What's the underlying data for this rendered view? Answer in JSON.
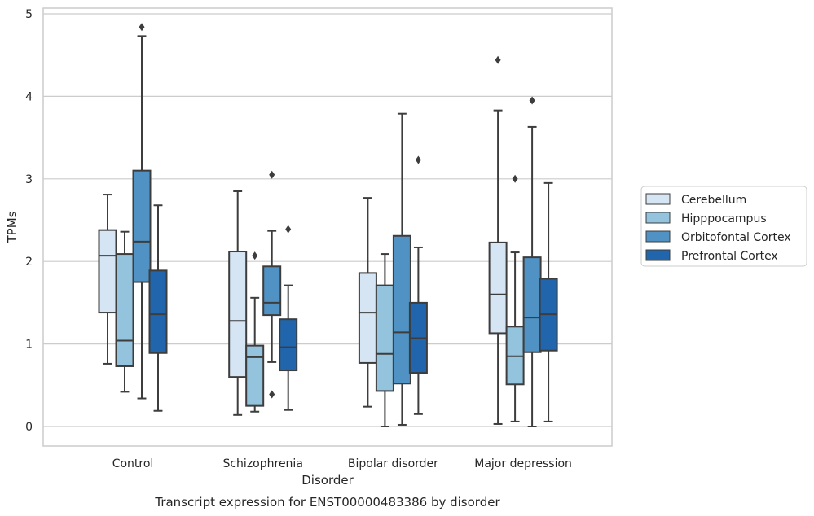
{
  "chart_data": {
    "type": "box",
    "title": "Transcript expression for ENST00000483386 by disorder",
    "xlabel": "Disorder",
    "ylabel": "TPMs",
    "ylim": [
      -0.23,
      5.1
    ],
    "yticks": [
      0,
      1,
      2,
      3,
      4,
      5
    ],
    "grid": true,
    "legend_position": "right",
    "categories": [
      "Control",
      "Schizophrenia",
      "Bipolar disorder",
      "Major depression"
    ],
    "series": [
      {
        "name": "Cerebellum",
        "color": "#d6e5f4",
        "boxes": [
          {
            "whislo": 0.76,
            "q1": 1.38,
            "med": 2.07,
            "q3": 2.38,
            "whishi": 2.81,
            "fliers": []
          },
          {
            "whislo": 0.14,
            "q1": 0.6,
            "med": 1.28,
            "q3": 2.12,
            "whishi": 2.85,
            "fliers": []
          },
          {
            "whislo": 0.24,
            "q1": 0.77,
            "med": 1.38,
            "q3": 1.86,
            "whishi": 2.77,
            "fliers": []
          },
          {
            "whislo": 0.03,
            "q1": 1.13,
            "med": 1.6,
            "q3": 2.23,
            "whishi": 3.83,
            "fliers": [
              4.44
            ]
          }
        ]
      },
      {
        "name": "Hipppocampus",
        "color": "#94c3dd",
        "boxes": [
          {
            "whislo": 0.42,
            "q1": 0.73,
            "med": 1.04,
            "q3": 2.09,
            "whishi": 2.36,
            "fliers": []
          },
          {
            "whislo": 0.18,
            "q1": 0.25,
            "med": 0.84,
            "q3": 0.98,
            "whishi": 1.56,
            "fliers": [
              2.07
            ]
          },
          {
            "whislo": 0.0,
            "q1": 0.43,
            "med": 0.88,
            "q3": 1.71,
            "whishi": 2.09,
            "fliers": []
          },
          {
            "whislo": 0.06,
            "q1": 0.51,
            "med": 0.85,
            "q3": 1.21,
            "whishi": 2.11,
            "fliers": [
              3.0
            ]
          }
        ]
      },
      {
        "name": "Orbitofontal Cortex",
        "color": "#4f92c3",
        "boxes": [
          {
            "whislo": 0.34,
            "q1": 1.75,
            "med": 2.24,
            "q3": 3.1,
            "whishi": 4.73,
            "fliers": [
              4.84
            ]
          },
          {
            "whislo": 0.78,
            "q1": 1.35,
            "med": 1.5,
            "q3": 1.94,
            "whishi": 2.37,
            "fliers": [
              3.05,
              0.39
            ]
          },
          {
            "whislo": 0.02,
            "q1": 0.52,
            "med": 1.14,
            "q3": 2.31,
            "whishi": 3.79,
            "fliers": []
          },
          {
            "whislo": 0.0,
            "q1": 0.9,
            "med": 1.32,
            "q3": 2.05,
            "whishi": 3.63,
            "fliers": [
              3.95
            ]
          }
        ]
      },
      {
        "name": "Prefrontal Cortex",
        "color": "#2166ac",
        "boxes": [
          {
            "whislo": 0.19,
            "q1": 0.89,
            "med": 1.36,
            "q3": 1.89,
            "whishi": 2.68,
            "fliers": []
          },
          {
            "whislo": 0.2,
            "q1": 0.68,
            "med": 0.96,
            "q3": 1.3,
            "whishi": 1.71,
            "fliers": [
              2.39
            ]
          },
          {
            "whislo": 0.15,
            "q1": 0.65,
            "med": 1.07,
            "q3": 1.5,
            "whishi": 2.17,
            "fliers": [
              3.23
            ]
          },
          {
            "whislo": 0.06,
            "q1": 0.92,
            "med": 1.36,
            "q3": 1.79,
            "whishi": 2.95,
            "fliers": []
          }
        ]
      }
    ]
  }
}
